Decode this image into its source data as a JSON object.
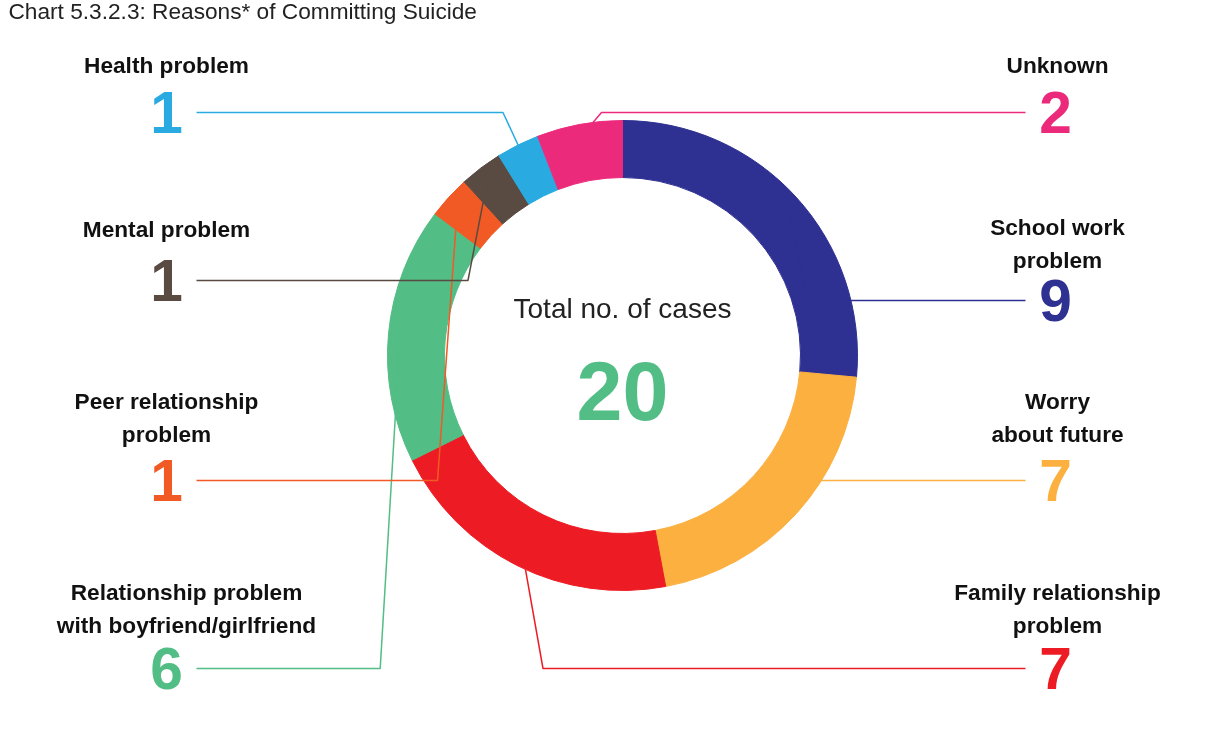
{
  "chart_data": {
    "type": "donut",
    "title": "Chart 5.3.2.3: Reasons* of Committing Suicide",
    "categories": [
      "School work\nproblem",
      "Worry\nabout future",
      "Family relationship\nproblem",
      "Relationship problem\nwith boyfriend/girlfriend",
      "Peer relationship\nproblem",
      "Mental problem",
      "Health problem",
      "Unknown"
    ],
    "values": [
      9,
      7,
      7,
      6,
      1,
      1,
      1,
      2
    ],
    "colors": [
      "#2e3192",
      "#fbb040",
      "#ed1c24",
      "#52bd84",
      "#f15a24",
      "#594a42",
      "#29abe2",
      "#ec2a7b"
    ],
    "data_labels": true,
    "annotations": [
      "Total no. of cases",
      "20"
    ]
  }
}
